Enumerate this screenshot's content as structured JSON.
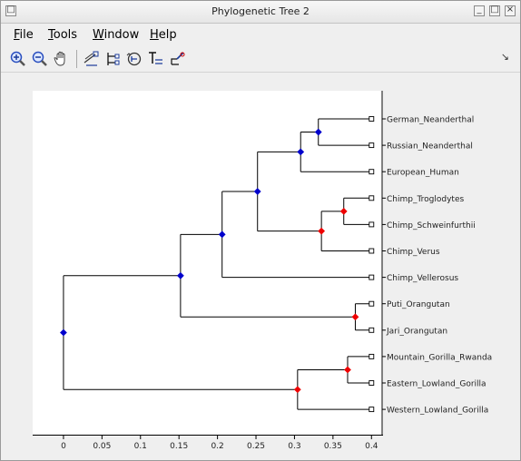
{
  "window": {
    "title": "Phylogenetic Tree 2"
  },
  "menu": [
    {
      "label": "File",
      "mnemonic": "F",
      "rest": "ile"
    },
    {
      "label": "Tools",
      "mnemonic": "T",
      "rest": "ools"
    },
    {
      "label": "Window",
      "mnemonic": "W",
      "rest": "indow"
    },
    {
      "label": "Help",
      "mnemonic": "H",
      "rest": "elp"
    }
  ],
  "toolbar": [
    {
      "icon": "zoom-in-icon"
    },
    {
      "icon": "zoom-out-icon"
    },
    {
      "icon": "pan-hand-icon"
    },
    {
      "icon": "inspect-tool-icon"
    },
    {
      "icon": "collapse-expand-icon"
    },
    {
      "icon": "rotate-branch-icon"
    },
    {
      "icon": "rename-icon"
    },
    {
      "icon": "prune-icon"
    }
  ],
  "chart_data": {
    "type": "tree",
    "orientation": "horizontal",
    "xlim": [
      -0.04,
      0.415
    ],
    "xticks": [
      0,
      0.05,
      0.1,
      0.15,
      0.2,
      0.25,
      0.3,
      0.35,
      0.4
    ],
    "xtick_labels": [
      "0",
      "0.05",
      "0.1",
      "0.15",
      "0.2",
      "0.25",
      "0.3",
      "0.35",
      "0.4"
    ],
    "leaves": [
      "German_Neanderthal",
      "Russian_Neanderthal",
      "European_Human",
      "Chimp_Troglodytes",
      "Chimp_Schweinfurthii",
      "Chimp_Verus",
      "Chimp_Vellerosus",
      "Puti_Orangutan",
      "Jari_Orangutan",
      "Mountain_Gorilla_Rwanda",
      "Eastern_Lowland_Gorilla",
      "Western_Lowland_Gorilla"
    ],
    "leaf_x": 0.4,
    "nodes": [
      {
        "id": "n1",
        "x": 0.331,
        "children": [
          "L0",
          "L1"
        ],
        "color": "blue"
      },
      {
        "id": "n2",
        "x": 0.308,
        "children": [
          "n1",
          "L2"
        ],
        "color": "blue"
      },
      {
        "id": "n3",
        "x": 0.364,
        "children": [
          "L3",
          "L4"
        ],
        "color": "red"
      },
      {
        "id": "n4",
        "x": 0.335,
        "children": [
          "n3",
          "L5"
        ],
        "color": "red"
      },
      {
        "id": "n5",
        "x": 0.252,
        "children": [
          "n2",
          "n4"
        ],
        "color": "blue"
      },
      {
        "id": "n6",
        "x": 0.206,
        "children": [
          "n5",
          "L6"
        ],
        "color": "blue"
      },
      {
        "id": "n7",
        "x": 0.379,
        "children": [
          "L7",
          "L8"
        ],
        "color": "red"
      },
      {
        "id": "n8",
        "x": 0.152,
        "children": [
          "n6",
          "n7"
        ],
        "color": "blue"
      },
      {
        "id": "n9",
        "x": 0.369,
        "children": [
          "L9",
          "L10"
        ],
        "color": "red"
      },
      {
        "id": "n10",
        "x": 0.304,
        "children": [
          "n9",
          "L11"
        ],
        "color": "red"
      },
      {
        "id": "n11",
        "x": 0.0,
        "children": [
          "n8",
          "n10"
        ],
        "color": "blue"
      }
    ],
    "colors": {
      "blue": "#0000cc",
      "red": "#ee0000",
      "branch": "#000000",
      "leaf_fill": "#ffffff"
    }
  }
}
